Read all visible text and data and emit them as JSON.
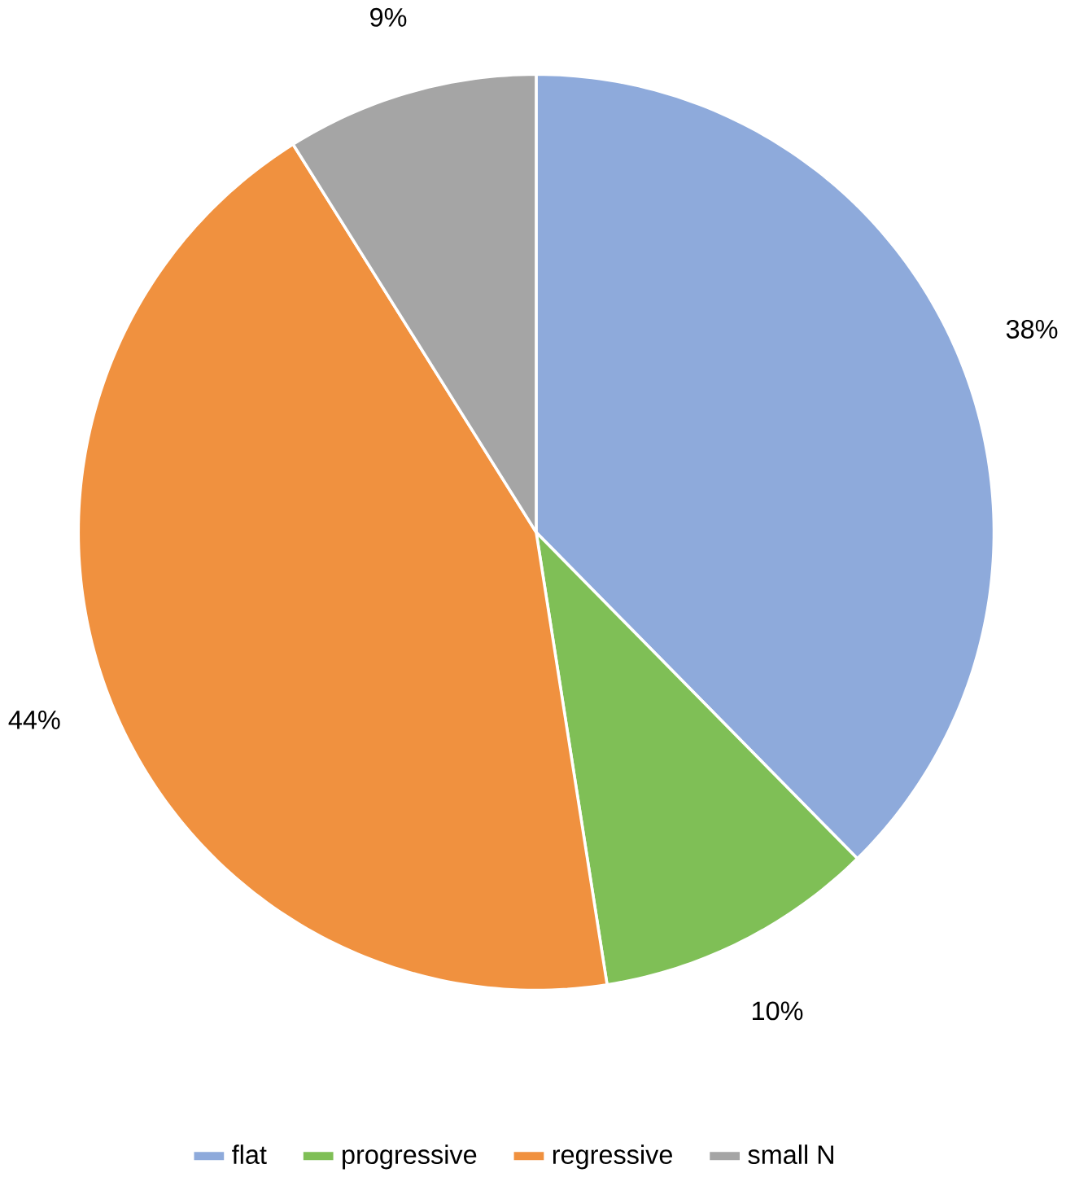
{
  "chart_data": {
    "type": "pie",
    "categories": [
      "flat",
      "progressive",
      "regressive",
      "small N"
    ],
    "values": [
      38,
      10,
      44,
      9
    ],
    "value_labels": [
      "38%",
      "10%",
      "44%",
      "9%"
    ],
    "colors": [
      "#8eaadb",
      "#7fbf56",
      "#f0913f",
      "#a5a5a5"
    ],
    "legend": "bottom"
  }
}
